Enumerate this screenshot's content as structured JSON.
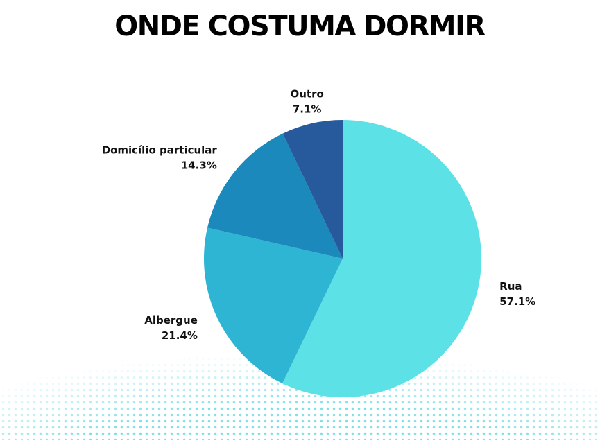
{
  "chart_data": {
    "type": "pie",
    "title": "ONDE COSTUMA DORMIR",
    "categories": [
      "Rua",
      "Albergue",
      "Domicílio particular",
      "Outro"
    ],
    "values": [
      57.1,
      21.4,
      14.3,
      7.1
    ],
    "value_labels": [
      "57.1%",
      "21.4%",
      "14.3%",
      "7.1%"
    ],
    "colors": [
      "#5ce1e6",
      "#2eb5d4",
      "#1b89bb",
      "#275a9c"
    ]
  }
}
